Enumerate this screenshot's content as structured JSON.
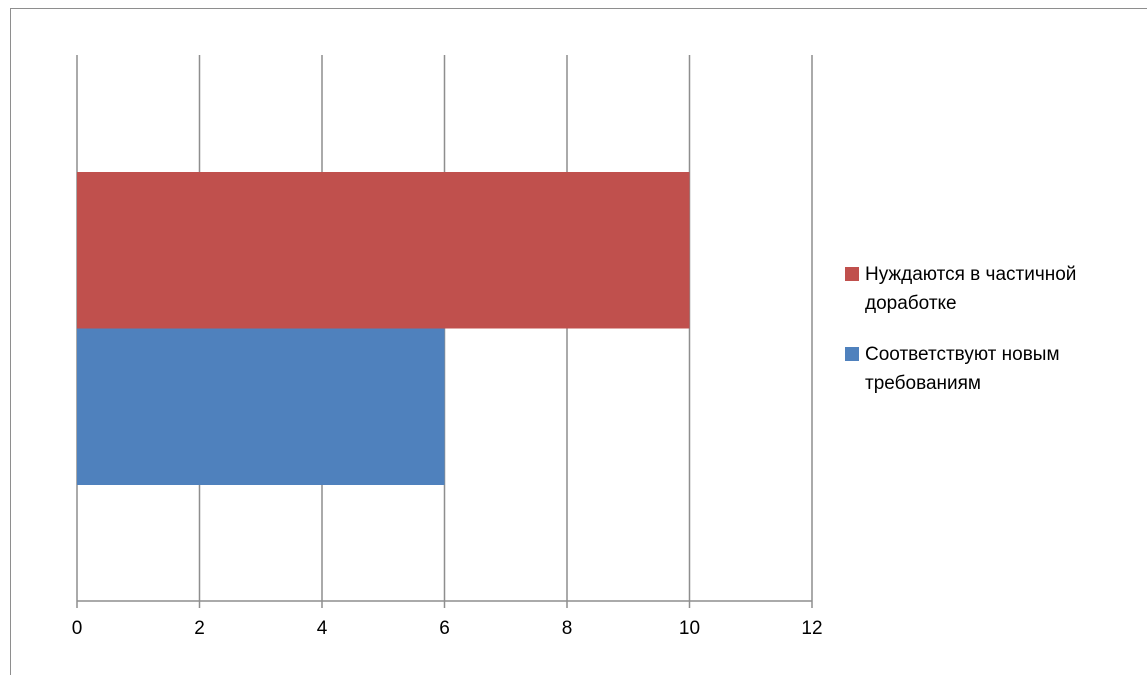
{
  "chart_data": {
    "type": "bar",
    "orientation": "horizontal",
    "categories": [
      ""
    ],
    "series": [
      {
        "name": "Соответствуют новым требованиям",
        "name_lines": [
          "Соответствуют новым",
          "требованиям"
        ],
        "values": [
          6
        ],
        "color": "#4f81bd"
      },
      {
        "name": "Нуждаются в частичной доработке",
        "name_lines": [
          "Нуждаются в частичной",
          "доработке"
        ],
        "values": [
          10
        ],
        "color": "#c0504d"
      }
    ],
    "title": "",
    "xlabel": "",
    "ylabel": "",
    "xlim": [
      0,
      12
    ],
    "x_ticks": [
      "0",
      "2",
      "4",
      "6",
      "8",
      "10",
      "12"
    ],
    "grid": true,
    "legend_position": "right",
    "legend_order": [
      1,
      0
    ]
  }
}
